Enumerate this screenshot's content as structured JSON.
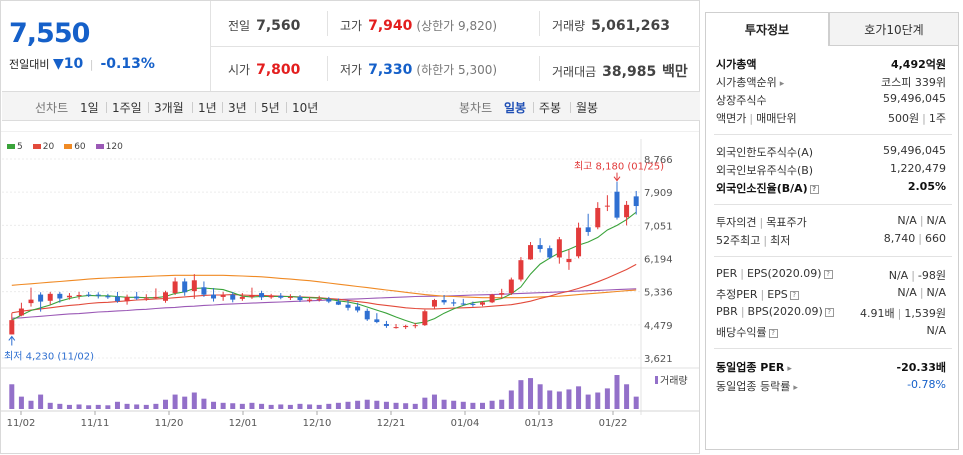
{
  "quote": {
    "price": "7,550",
    "change_label": "전일대비",
    "change_arrow": "▼",
    "change_value": "10",
    "change_rate": "-0.13%"
  },
  "summary": {
    "prev_close": {
      "label": "전일",
      "value": "7,560"
    },
    "open": {
      "label": "시가",
      "value": "7,800"
    },
    "high": {
      "label": "고가",
      "value": "7,940",
      "sub": "(상한가 9,820)"
    },
    "low": {
      "label": "저가",
      "value": "7,330",
      "sub": "(하한가 5,300)"
    },
    "volume": {
      "label": "거래량",
      "value": "5,061,263"
    },
    "amount": {
      "label": "거래대금",
      "value": "38,985",
      "unit": "백만"
    }
  },
  "period_bar": {
    "line_label": "선차트",
    "line_options": [
      "1일",
      "1주일",
      "3개월",
      "1년",
      "3년",
      "5년",
      "10년"
    ],
    "candle_label": "봉차트",
    "candle_options": [
      "일봉",
      "주봉",
      "월봉"
    ],
    "candle_selected": "일봉"
  },
  "legend": {
    "items": [
      {
        "label": "5",
        "color": "#3aa33a"
      },
      {
        "label": "20",
        "color": "#e24a3b"
      },
      {
        "label": "60",
        "color": "#f08a24"
      },
      {
        "label": "120",
        "color": "#9b59b6"
      }
    ]
  },
  "chart_data": {
    "type": "candlestick",
    "y_ticks": [
      "8,766",
      "7,909",
      "7,051",
      "6,194",
      "5,336",
      "4,479",
      "3,621"
    ],
    "x_ticks": [
      "11/02",
      "11/11",
      "11/20",
      "12/01",
      "12/10",
      "12/21",
      "01/04",
      "01/13",
      "01/22"
    ],
    "ylim": [
      3621,
      8766
    ],
    "high_annotation": "최고 8,180 (01/25)",
    "low_annotation": "최저 4,230 (11/02)",
    "volume_label": "거래량",
    "colors": {
      "up": "#e23b3b",
      "down": "#2e6fd1",
      "volume": "#9370c9"
    },
    "candles": [
      [
        4230,
        4780,
        4230,
        4600
      ],
      [
        4720,
        5050,
        4700,
        4900
      ],
      [
        5040,
        5440,
        4950,
        5130
      ],
      [
        5260,
        5320,
        4820,
        5080
      ],
      [
        5100,
        5330,
        5000,
        5280
      ],
      [
        5280,
        5330,
        5050,
        5160
      ],
      [
        5190,
        5300,
        5130,
        5230
      ],
      [
        5240,
        5330,
        5140,
        5250
      ],
      [
        5260,
        5330,
        5200,
        5240
      ],
      [
        5260,
        5320,
        5160,
        5230
      ],
      [
        5220,
        5280,
        5150,
        5190
      ],
      [
        5210,
        5330,
        5050,
        5090
      ],
      [
        5090,
        5260,
        5000,
        5200
      ],
      [
        5210,
        5330,
        5120,
        5160
      ],
      [
        5160,
        5270,
        5100,
        5180
      ],
      [
        5180,
        5420,
        5150,
        5200
      ],
      [
        5100,
        5360,
        5050,
        5320
      ],
      [
        5300,
        5700,
        5250,
        5600
      ],
      [
        5600,
        5680,
        5230,
        5320
      ],
      [
        5350,
        5790,
        5150,
        5630
      ],
      [
        5450,
        5600,
        5200,
        5260
      ],
      [
        5260,
        5430,
        5080,
        5160
      ],
      [
        5200,
        5330,
        5100,
        5260
      ],
      [
        5260,
        5330,
        5060,
        5130
      ],
      [
        5150,
        5300,
        5100,
        5200
      ],
      [
        5200,
        5440,
        5150,
        5250
      ],
      [
        5300,
        5360,
        5120,
        5190
      ],
      [
        5190,
        5280,
        5150,
        5230
      ],
      [
        5230,
        5300,
        5140,
        5180
      ],
      [
        5180,
        5270,
        5120,
        5200
      ],
      [
        5200,
        5250,
        5070,
        5120
      ],
      [
        5100,
        5200,
        5060,
        5130
      ],
      [
        5130,
        5230,
        5080,
        5150
      ],
      [
        5150,
        5200,
        5040,
        5080
      ],
      [
        5080,
        5160,
        4990,
        5000
      ],
      [
        5000,
        5120,
        4850,
        4920
      ],
      [
        4950,
        5050,
        4800,
        4850
      ],
      [
        4840,
        4900,
        4580,
        4620
      ],
      [
        4620,
        4780,
        4520,
        4550
      ],
      [
        4500,
        4580,
        4400,
        4450
      ],
      [
        4400,
        4500,
        4380,
        4420
      ],
      [
        4420,
        4480,
        4370,
        4450
      ],
      [
        4450,
        4530,
        4390,
        4470
      ],
      [
        4470,
        4870,
        4450,
        4830
      ],
      [
        4950,
        5150,
        4900,
        5120
      ],
      [
        5120,
        5250,
        5000,
        5060
      ],
      [
        5060,
        5140,
        4960,
        5030
      ],
      [
        5030,
        5150,
        4980,
        5020
      ],
      [
        5020,
        5080,
        4950,
        5000
      ],
      [
        5000,
        5090,
        4960,
        5060
      ],
      [
        5060,
        5280,
        5040,
        5260
      ],
      [
        5260,
        5410,
        5160,
        5300
      ],
      [
        5300,
        5700,
        5250,
        5650
      ],
      [
        5650,
        6230,
        5600,
        6150
      ],
      [
        6170,
        6620,
        6160,
        6540
      ],
      [
        6540,
        6720,
        6350,
        6440
      ],
      [
        6460,
        6530,
        6180,
        6220
      ],
      [
        6220,
        6750,
        6060,
        6690
      ],
      [
        6100,
        6410,
        5900,
        6180
      ],
      [
        6250,
        7120,
        6200,
        6990
      ],
      [
        7000,
        7350,
        6780,
        6880
      ],
      [
        7000,
        7650,
        6950,
        7500
      ],
      [
        7550,
        7830,
        7420,
        7560
      ],
      [
        7920,
        8180,
        7200,
        7250
      ],
      [
        7260,
        7680,
        7050,
        7580
      ],
      [
        7800,
        7940,
        7330,
        7550
      ]
    ],
    "ma5": [
      4600,
      4730,
      4850,
      4920,
      4990,
      5090,
      5160,
      5210,
      5240,
      5230,
      5230,
      5210,
      5190,
      5190,
      5180,
      5180,
      5210,
      5290,
      5330,
      5420,
      5430,
      5410,
      5390,
      5310,
      5220,
      5200,
      5210,
      5210,
      5210,
      5210,
      5190,
      5180,
      5170,
      5140,
      5100,
      5070,
      5020,
      4940,
      4860,
      4780,
      4680,
      4590,
      4510,
      4550,
      4640,
      4780,
      4890,
      4980,
      5050,
      5080,
      5110,
      5160,
      5280,
      5460,
      5790,
      6050,
      6200,
      6340,
      6430,
      6540,
      6620,
      6740,
      6930,
      7050,
      7200,
      7390
    ],
    "ma20": [
      4790,
      4830,
      4860,
      4890,
      4920,
      4950,
      4980,
      5000,
      5030,
      5050,
      5060,
      5080,
      5100,
      5120,
      5130,
      5150,
      5160,
      5180,
      5200,
      5220,
      5240,
      5250,
      5250,
      5260,
      5250,
      5240,
      5240,
      5230,
      5220,
      5210,
      5200,
      5190,
      5180,
      5160,
      5140,
      5110,
      5080,
      5050,
      5010,
      4980,
      4950,
      4920,
      4900,
      4890,
      4890,
      4900,
      4910,
      4920,
      4930,
      4940,
      4960,
      4980,
      5000,
      5040,
      5090,
      5160,
      5220,
      5290,
      5350,
      5420,
      5500,
      5590,
      5690,
      5800,
      5910,
      6040
    ],
    "ma60": [
      5500,
      5520,
      5540,
      5560,
      5580,
      5600,
      5620,
      5640,
      5660,
      5680,
      5690,
      5700,
      5710,
      5720,
      5730,
      5740,
      5750,
      5760,
      5760,
      5760,
      5760,
      5760,
      5760,
      5750,
      5740,
      5730,
      5720,
      5700,
      5680,
      5660,
      5640,
      5620,
      5590,
      5560,
      5530,
      5500,
      5470,
      5440,
      5410,
      5380,
      5350,
      5320,
      5290,
      5260,
      5240,
      5220,
      5210,
      5200,
      5190,
      5180,
      5180,
      5180,
      5180,
      5180,
      5190,
      5200,
      5210,
      5220,
      5240,
      5260,
      5280,
      5300,
      5320,
      5340,
      5360,
      5380
    ],
    "ma120": [
      4650,
      4660,
      4680,
      4700,
      4720,
      4740,
      4760,
      4770,
      4790,
      4810,
      4820,
      4840,
      4850,
      4870,
      4880,
      4900,
      4920,
      4930,
      4950,
      4960,
      4980,
      4990,
      5010,
      5020,
      5030,
      5040,
      5050,
      5060,
      5070,
      5080,
      5090,
      5100,
      5110,
      5120,
      5130,
      5140,
      5150,
      5160,
      5170,
      5180,
      5190,
      5200,
      5210,
      5215,
      5220,
      5225,
      5230,
      5240,
      5250,
      5255,
      5260,
      5270,
      5280,
      5290,
      5300,
      5310,
      5320,
      5330,
      5340,
      5350,
      5360,
      5370,
      5380,
      5390,
      5400,
      5410
    ],
    "volumes": [
      120,
      60,
      40,
      70,
      30,
      25,
      20,
      22,
      18,
      20,
      18,
      35,
      25,
      22,
      20,
      25,
      45,
      70,
      60,
      80,
      50,
      35,
      30,
      28,
      25,
      30,
      25,
      20,
      22,
      20,
      25,
      22,
      20,
      25,
      30,
      35,
      40,
      45,
      40,
      35,
      30,
      28,
      25,
      55,
      70,
      45,
      40,
      35,
      30,
      30,
      40,
      45,
      90,
      140,
      150,
      120,
      90,
      85,
      95,
      110,
      70,
      80,
      100,
      165,
      120,
      60
    ]
  },
  "tabs": {
    "info": "투자정보",
    "hoga": "호가10단계"
  },
  "info": {
    "market_cap": {
      "label": "시가총액",
      "value": "4,492억원"
    },
    "market_cap_rank": {
      "label": "시가총액순위",
      "value": "코스피 339위"
    },
    "shares": {
      "label": "상장주식수",
      "value": "59,496,045"
    },
    "par": {
      "label": "액면가",
      "label2": "매매단위",
      "value": "500원",
      "value2": "1주"
    },
    "foreign_limit": {
      "label": "외국인한도주식수(A)",
      "value": "59,496,045"
    },
    "foreign_held": {
      "label": "외국인보유주식수(B)",
      "value": "1,220,479"
    },
    "foreign_ratio": {
      "label": "외국인소진율(B/A)",
      "value": "2.05%"
    },
    "opinion": {
      "label": "투자의견",
      "label2": "목표주가",
      "value": "N/A",
      "value2": "N/A"
    },
    "week52": {
      "label": "52주최고",
      "label2": "최저",
      "value": "8,740",
      "value2": "660"
    },
    "per": {
      "label": "PER",
      "label2": "EPS(2020.09)",
      "value": "N/A",
      "value2": "-98원"
    },
    "est_per": {
      "label": "추정PER",
      "label2": "EPS",
      "value": "N/A",
      "value2": "N/A"
    },
    "pbr": {
      "label": "PBR",
      "label2": "BPS(2020.09)",
      "value": "4.91배",
      "value2": "1,539원"
    },
    "dividend": {
      "label": "배당수익률",
      "value": "N/A"
    },
    "sector_per": {
      "label": "동일업종 PER",
      "value": "-20.33배"
    },
    "sector_rate": {
      "label": "동일업종 등락률",
      "value": "-0.78%"
    }
  }
}
